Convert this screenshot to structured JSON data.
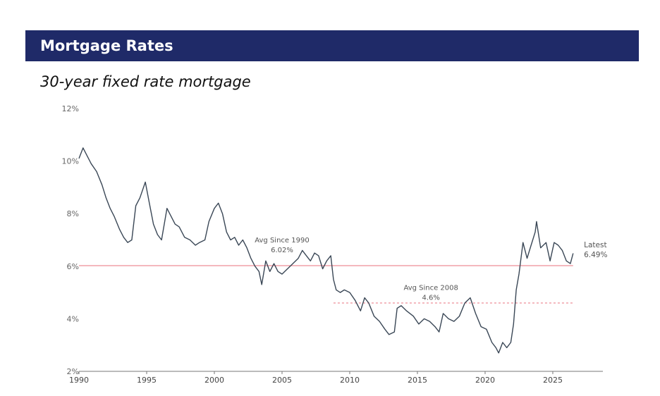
{
  "header": {
    "title": "Mortgage Rates"
  },
  "chart_data": {
    "type": "line",
    "title": "Mortgage Rates",
    "subtitle": "30-year fixed rate mortgage",
    "xlabel": "",
    "ylabel": "",
    "xlim": [
      1990,
      2028.7
    ],
    "ylim": [
      2,
      12
    ],
    "x_ticks": [
      "1990",
      "1995",
      "2000",
      "2005",
      "2010",
      "2015",
      "2020",
      "2025"
    ],
    "y_ticks": [
      "2%",
      "4%",
      "6%",
      "8%",
      "10%",
      "12%"
    ],
    "grid": false,
    "series": [
      {
        "color": "#3a4756",
        "x": [
          1990.0,
          1990.3,
          1990.6,
          1990.9,
          1991.3,
          1991.7,
          1992.0,
          1992.3,
          1992.6,
          1993.0,
          1993.3,
          1993.6,
          1993.9,
          1994.2,
          1994.5,
          1994.9,
          1995.2,
          1995.5,
          1995.8,
          1996.1,
          1996.5,
          1996.8,
          1997.1,
          1997.4,
          1997.8,
          1998.2,
          1998.6,
          1998.9,
          1999.3,
          1999.6,
          2000.0,
          2000.3,
          2000.6,
          2000.9,
          2001.2,
          2001.5,
          2001.8,
          2002.1,
          2002.4,
          2002.7,
          2003.0,
          2003.3,
          2003.5,
          2003.8,
          2004.1,
          2004.4,
          2004.7,
          2005.0,
          2005.4,
          2005.8,
          2006.2,
          2006.5,
          2006.8,
          2007.1,
          2007.4,
          2007.7,
          2008.0,
          2008.3,
          2008.6,
          2008.8,
          2009.0,
          2009.3,
          2009.6,
          2010.0,
          2010.4,
          2010.8,
          2011.1,
          2011.4,
          2011.8,
          2012.2,
          2012.6,
          2012.9,
          2013.3,
          2013.5,
          2013.8,
          2014.2,
          2014.7,
          2015.1,
          2015.5,
          2015.9,
          2016.3,
          2016.6,
          2016.9,
          2017.3,
          2017.7,
          2018.1,
          2018.5,
          2018.9,
          2019.3,
          2019.7,
          2020.1,
          2020.5,
          2020.8,
          2021.0,
          2021.3,
          2021.6,
          2021.9,
          2022.1,
          2022.3,
          2022.5,
          2022.8,
          2023.1,
          2023.4,
          2023.7,
          2023.8,
          2024.1,
          2024.5,
          2024.8,
          2025.1,
          2025.4,
          2025.7,
          2026.0,
          2026.3,
          2026.5
        ],
        "y": [
          10.1,
          10.5,
          10.2,
          9.9,
          9.6,
          9.1,
          8.6,
          8.2,
          7.9,
          7.4,
          7.1,
          6.9,
          7.0,
          8.3,
          8.6,
          9.2,
          8.4,
          7.6,
          7.2,
          7.0,
          8.2,
          7.9,
          7.6,
          7.5,
          7.1,
          7.0,
          6.8,
          6.9,
          7.0,
          7.7,
          8.2,
          8.4,
          8.0,
          7.3,
          7.0,
          7.1,
          6.8,
          7.0,
          6.7,
          6.3,
          6.0,
          5.8,
          5.3,
          6.2,
          5.8,
          6.1,
          5.8,
          5.7,
          5.9,
          6.1,
          6.3,
          6.6,
          6.4,
          6.2,
          6.5,
          6.4,
          5.9,
          6.2,
          6.4,
          5.5,
          5.1,
          5.0,
          5.1,
          5.0,
          4.7,
          4.3,
          4.8,
          4.6,
          4.1,
          3.9,
          3.6,
          3.4,
          3.5,
          4.4,
          4.5,
          4.3,
          4.1,
          3.8,
          4.0,
          3.9,
          3.7,
          3.5,
          4.2,
          4.0,
          3.9,
          4.1,
          4.6,
          4.8,
          4.2,
          3.7,
          3.6,
          3.1,
          2.9,
          2.7,
          3.1,
          2.9,
          3.1,
          3.8,
          5.1,
          5.7,
          6.9,
          6.3,
          6.8,
          7.3,
          7.7,
          6.7,
          6.9,
          6.2,
          6.9,
          6.8,
          6.6,
          6.2,
          6.1,
          6.49
        ]
      }
    ],
    "reference_lines": [
      {
        "y": 6.02,
        "x_start": 1990,
        "x_end": 2026.5,
        "style": "solid",
        "color": "#e8707e",
        "label_lines": [
          "Avg Since 1990",
          "6.02%"
        ],
        "label_x": 2005.0,
        "label_y": 6.9
      },
      {
        "y": 4.6,
        "x_start": 2008.8,
        "x_end": 2026.5,
        "style": "dashed",
        "color": "#e8707e",
        "label_lines": [
          "Avg Since 2008",
          "4.6%"
        ],
        "label_x": 2016.0,
        "label_y": 5.1
      }
    ],
    "annotations": [
      {
        "lines": [
          "Latest",
          "6.49%"
        ],
        "x": 2027.3,
        "y": 6.48
      }
    ]
  }
}
